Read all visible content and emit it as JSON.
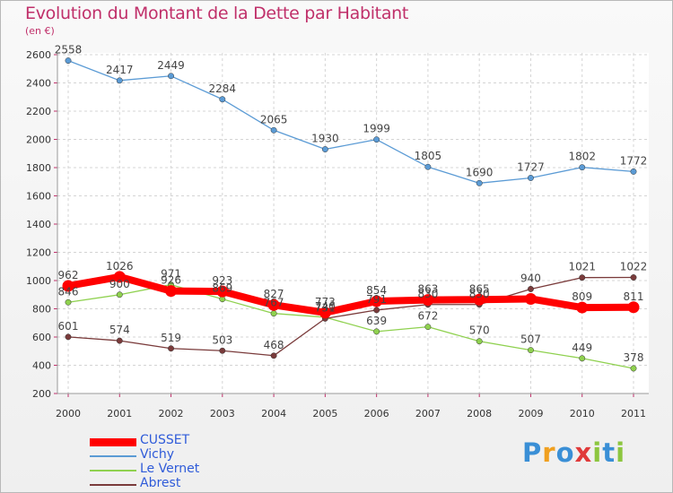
{
  "title": "Evolution du Montant de la Dette par Habitant",
  "subtitle": "(en €)",
  "brand": "Proxiti",
  "chart_data": {
    "type": "line",
    "x": [
      "2000",
      "2001",
      "2002",
      "2003",
      "2004",
      "2005",
      "2006",
      "2007",
      "2008",
      "2009",
      "2010",
      "2011"
    ],
    "ylim": [
      200,
      2600
    ],
    "yticks": [
      200,
      400,
      600,
      800,
      1000,
      1200,
      1400,
      1600,
      1800,
      2000,
      2200,
      2400,
      2600
    ],
    "grid": true,
    "legend_placement": "bottom-left",
    "series": [
      {
        "name": "CUSSET",
        "color": "#ff0000",
        "values": [
          962,
          1026,
          926,
          923,
          827,
          773,
          854,
          863,
          865,
          870,
          809,
          811
        ],
        "labels": [
          "962",
          "1026",
          "926",
          "923",
          "827",
          "773",
          "854",
          "863",
          "865",
          "",
          "809",
          "811"
        ]
      },
      {
        "name": "Vichy",
        "color": "#5b9bd5",
        "values": [
          2558,
          2417,
          2449,
          2284,
          2065,
          1930,
          1999,
          1805,
          1690,
          1727,
          1802,
          1772
        ],
        "labels": [
          "2558",
          "2417",
          "2449",
          "2284",
          "2065",
          "1930",
          "1999",
          "1805",
          "1690",
          "1727",
          "1802",
          "1772"
        ]
      },
      {
        "name": "Le Vernet",
        "color": "#8fd14f",
        "values": [
          846,
          900,
          971,
          869,
          767,
          740,
          639,
          672,
          570,
          507,
          449,
          378
        ],
        "labels": [
          "846",
          "900",
          "971",
          "869",
          "767",
          "740",
          "639",
          "672",
          "570",
          "507",
          "449",
          "378"
        ]
      },
      {
        "name": "Abrest",
        "color": "#7a3b3b",
        "values": [
          601,
          574,
          519,
          503,
          468,
          731,
          791,
          830,
          830,
          940,
          1021,
          1022
        ],
        "labels": [
          "601",
          "574",
          "519",
          "503",
          "468",
          "731",
          "791",
          "830",
          "830",
          "940",
          "1021",
          "1022"
        ]
      }
    ]
  }
}
